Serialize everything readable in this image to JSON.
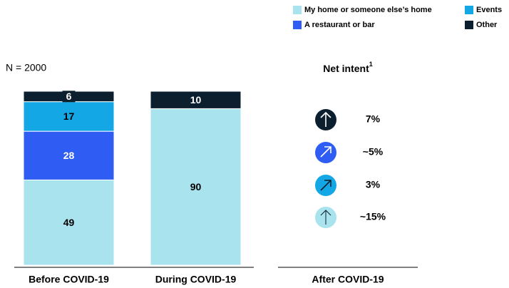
{
  "chart_data": {
    "type": "stacked-bar",
    "annotation": "N = 2000",
    "categories": [
      "Before COVID-19",
      "During COVID-19"
    ],
    "series": [
      {
        "name": "My home or someone else’s home",
        "color": "#a8e3ee",
        "values": [
          49,
          90
        ]
      },
      {
        "name": "A restaurant or bar",
        "color": "#2f5cf2",
        "values": [
          28,
          null
        ]
      },
      {
        "name": "Events",
        "color": "#14a7e6",
        "values": [
          17,
          null
        ]
      },
      {
        "name": "Other",
        "color": "#0b1f2e",
        "values": [
          6,
          10
        ]
      }
    ],
    "ylim": [
      0,
      100
    ],
    "net_intent": {
      "title": "Net intent",
      "footnote": "1",
      "column": "After COVID-19",
      "items": [
        {
          "label": "7%",
          "color": "#0b1f2e"
        },
        {
          "label": "~5%",
          "color": "#2f5cf2"
        },
        {
          "label": "3%",
          "color": "#14a7e6"
        },
        {
          "label": "~15%",
          "color": "#a8e3ee"
        }
      ]
    }
  }
}
